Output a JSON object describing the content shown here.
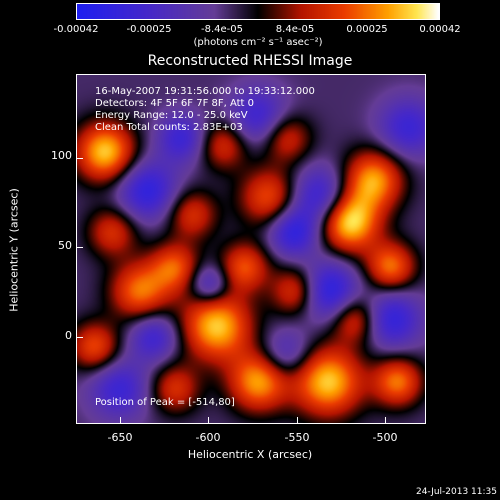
{
  "colorbar": {
    "tick_labels": [
      "-0.00042",
      "-0.00025",
      "-8.4e-05",
      "8.4e-05",
      "0.00025",
      "0.00042"
    ],
    "unit": "(photons cm⁻² s⁻¹ asec⁻²)"
  },
  "title": "Reconstructed RHESSI Image",
  "info": {
    "time": "16-May-2007 19:31:56.000 to 19:33:12.000",
    "detectors": "Detectors: 4F 5F 6F 7F 8F, Att 0",
    "energy": "Energy Range: 12.0 - 25.0 keV",
    "clean": "Clean    Total counts: 2.83E+03",
    "peak": "Position of Peak = [-514,80]"
  },
  "axes": {
    "xlabel": "Heliocentric X (arcsec)",
    "ylabel": "Heliocentric Y (arcsec)",
    "x_ticks": [
      "-650",
      "-600",
      "-550",
      "-500"
    ],
    "y_ticks": [
      "100",
      "50",
      "0"
    ]
  },
  "timestamp": "24-Jul-2013 11:35"
}
